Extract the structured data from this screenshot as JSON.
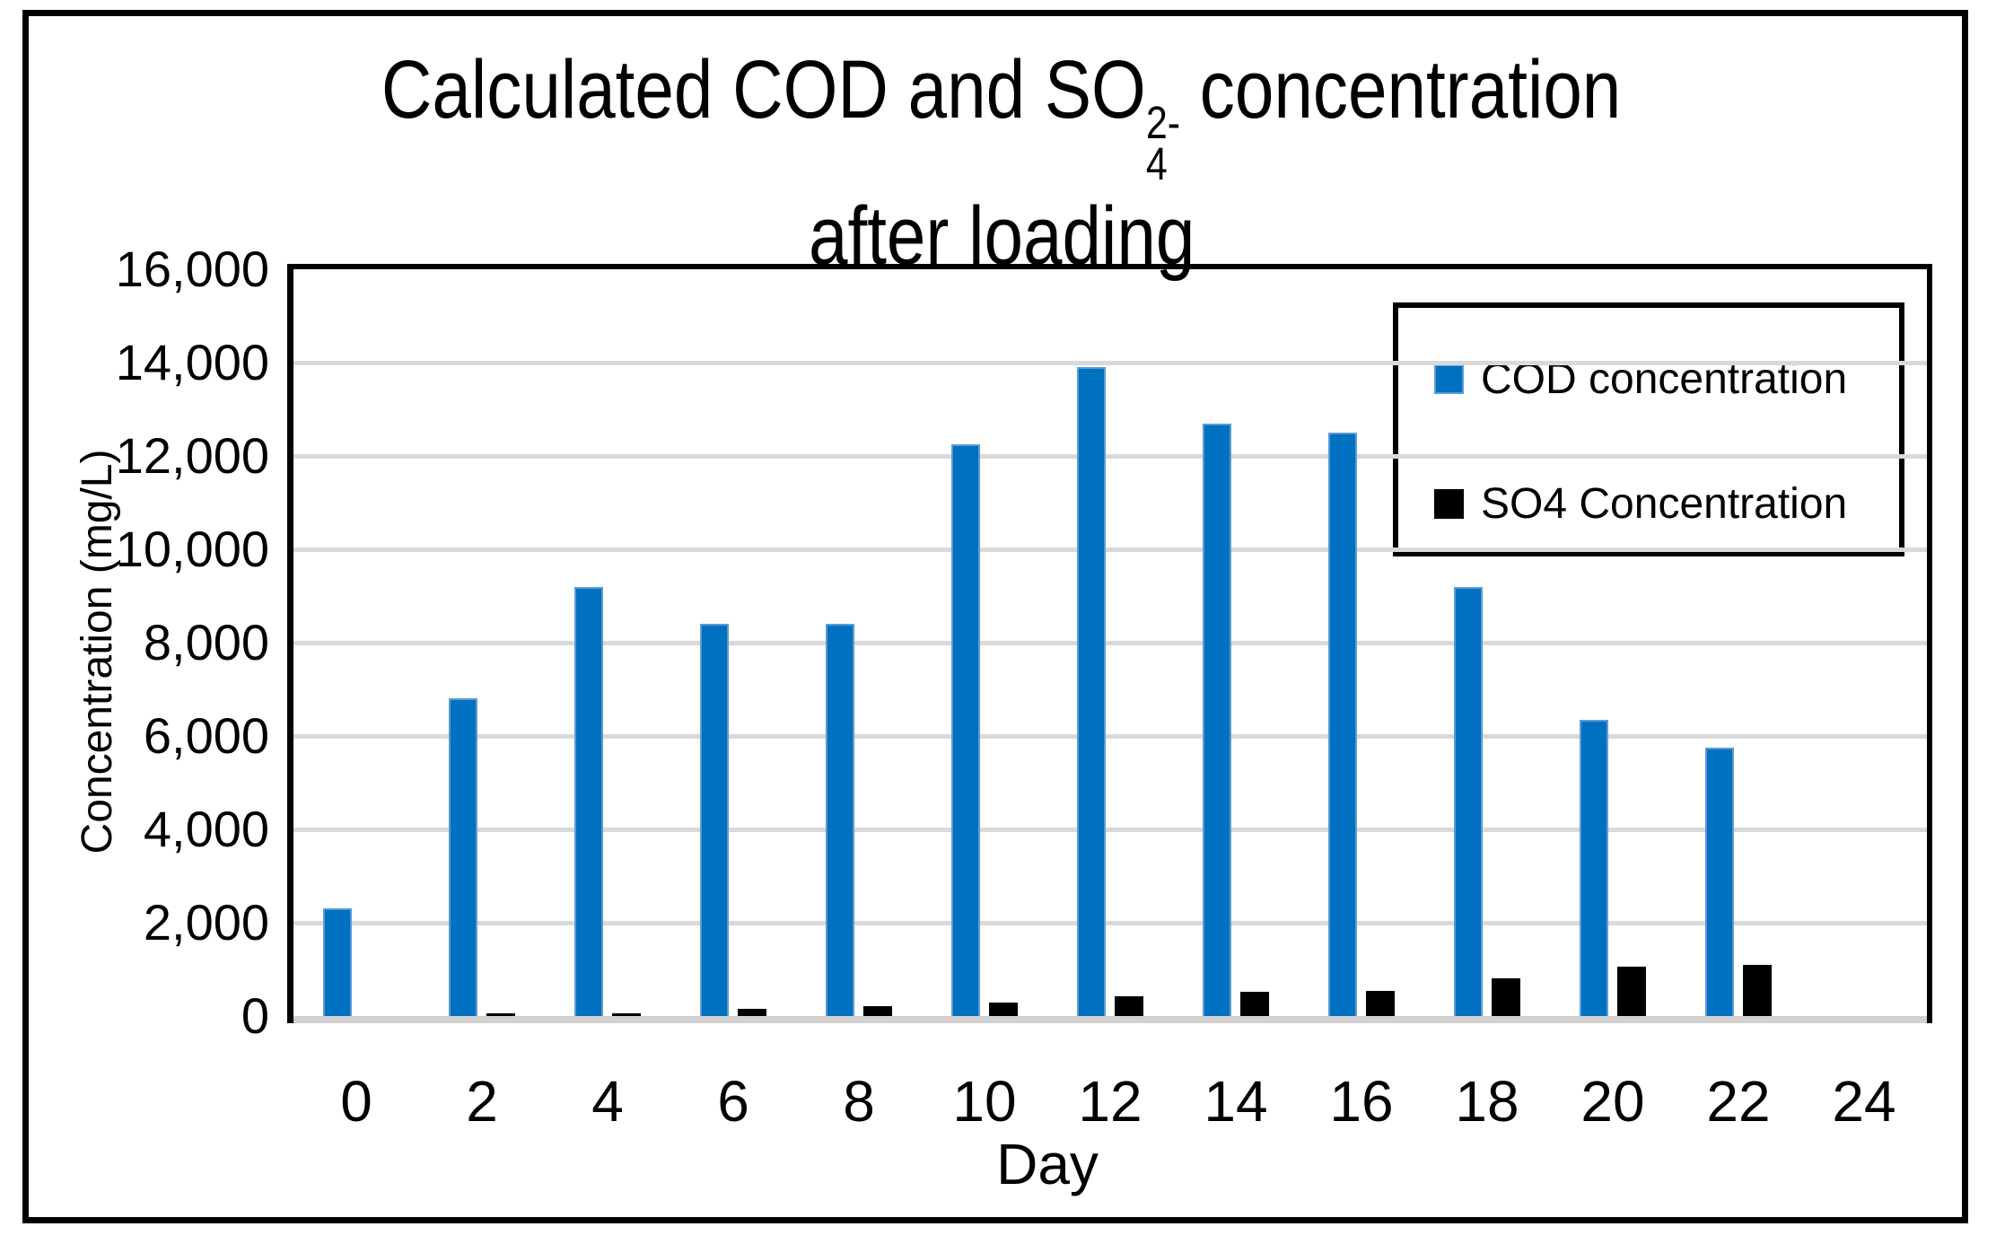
{
  "title": {
    "line1_prefix": "Calculated COD and SO",
    "formula_sub": "4",
    "formula_sup": "2-",
    "line1_suffix": " concentration",
    "line2": "after loading"
  },
  "chart_data": {
    "type": "bar",
    "title": "Calculated COD and SO4(2-) concentration after loading",
    "xlabel": "Day",
    "ylabel": "Concentration (mg/L)",
    "categories": [
      0,
      2,
      4,
      6,
      8,
      10,
      12,
      14,
      16,
      18,
      20,
      22
    ],
    "series": [
      {
        "name": "COD concentration",
        "color": "#0070C0",
        "values": [
          2300,
          6800,
          9200,
          8400,
          8400,
          12250,
          13900,
          12700,
          12500,
          9200,
          6350,
          5750
        ]
      },
      {
        "name": "SO4 Concentration",
        "color": "#000000",
        "values": [
          0,
          50,
          60,
          150,
          210,
          290,
          430,
          510,
          530,
          800,
          1050,
          1100
        ]
      }
    ],
    "ylim": [
      0,
      16000
    ],
    "y_tick_step": 2000,
    "y_tick_labels": [
      "0",
      "2,000",
      "4,000",
      "6,000",
      "8,000",
      "10,000",
      "12,000",
      "14,000",
      "16,000"
    ],
    "x_tick_labels": [
      "0",
      "2",
      "4",
      "6",
      "8",
      "10",
      "12",
      "14",
      "16",
      "18",
      "20",
      "22",
      "24"
    ],
    "grid": true,
    "gridline_color": "#D9D9D9",
    "legend_position": "upper-right-inside"
  }
}
